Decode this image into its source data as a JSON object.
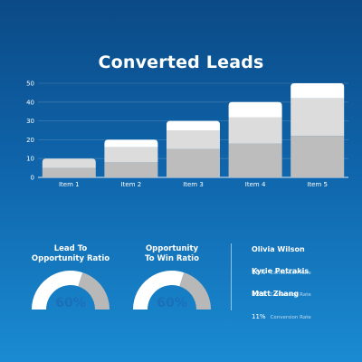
{
  "title": "Converted Leads",
  "chart_data": {
    "type": "bar",
    "stacked": true,
    "categories": [
      "Item 1",
      "Item 2",
      "Item 3",
      "Item 4",
      "Item 5"
    ],
    "series": [
      {
        "values": [
          5,
          8,
          15,
          18,
          22
        ],
        "color": "#bdbdbd"
      },
      {
        "values": [
          5,
          8,
          10,
          14,
          20
        ],
        "color": "#dcdcdc"
      },
      {
        "values": [
          0,
          4,
          5,
          8,
          8
        ],
        "color": "#ffffff"
      }
    ],
    "ylim": [
      0,
      50
    ],
    "yticks": [
      "0",
      "10",
      "20",
      "30",
      "40",
      "50"
    ],
    "grid": true
  },
  "gauges": [
    {
      "label_line1": "Lead To",
      "label_line2": "Opportunity Ratio",
      "value": "60%",
      "fraction": 0.6
    },
    {
      "label_line1": "Opportunity",
      "label_line2": "To Win Ratio",
      "value": "60%",
      "fraction": 0.6
    }
  ],
  "people": [
    {
      "name": "Olivia Wilson",
      "pct": "15%",
      "rate_label": "Conversion Rate"
    },
    {
      "name": "Kyrie Petrakis",
      "pct": "12%",
      "rate_label": "Conversion Rate"
    },
    {
      "name": "Matt Zhang",
      "pct": "11%",
      "rate_label": "Conversion Rate"
    }
  ],
  "colors": {
    "gauge_fill": "#ffffff",
    "gauge_rest": "#b8b8b8",
    "gauge_text": "#1a6fb8"
  }
}
